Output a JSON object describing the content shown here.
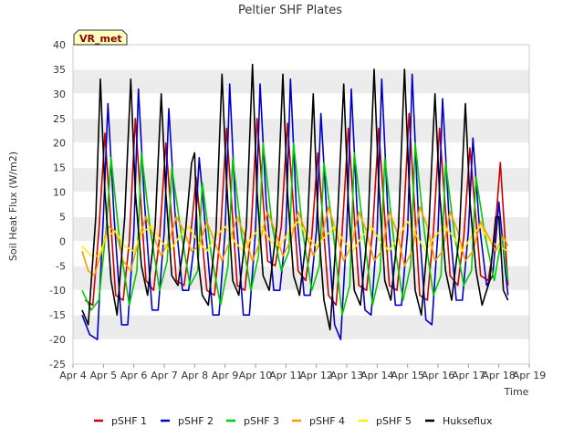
{
  "chart_data": {
    "type": "line",
    "title": "Peltier SHF Plates",
    "xlabel": "Time",
    "ylabel": "Soil Heat Flux (W/m2)",
    "badge": "VR_met",
    "xlim": [
      4,
      19
    ],
    "ylim": [
      -25,
      40
    ],
    "x_ticks": [
      {
        "value": 4,
        "label": "Apr 4"
      },
      {
        "value": 5,
        "label": "Apr 5"
      },
      {
        "value": 6,
        "label": "Apr 6"
      },
      {
        "value": 7,
        "label": "Apr 7"
      },
      {
        "value": 8,
        "label": "Apr 8"
      },
      {
        "value": 9,
        "label": "Apr 9"
      },
      {
        "value": 10,
        "label": "Apr 10"
      },
      {
        "value": 11,
        "label": "Apr 11"
      },
      {
        "value": 12,
        "label": "Apr 12"
      },
      {
        "value": 13,
        "label": "Apr 13"
      },
      {
        "value": 14,
        "label": "Apr 14"
      },
      {
        "value": 15,
        "label": "Apr 15"
      },
      {
        "value": 16,
        "label": "Apr 16"
      },
      {
        "value": 17,
        "label": "Apr 17"
      },
      {
        "value": 18,
        "label": "Apr 18"
      },
      {
        "value": 19,
        "label": "Apr 19"
      }
    ],
    "y_ticks": [
      {
        "value": -25,
        "label": "-25"
      },
      {
        "value": -20,
        "label": "-20"
      },
      {
        "value": -15,
        "label": "-15"
      },
      {
        "value": -10,
        "label": "-10"
      },
      {
        "value": -5,
        "label": "-5"
      },
      {
        "value": 0,
        "label": "0"
      },
      {
        "value": 5,
        "label": "5"
      },
      {
        "value": 10,
        "label": "10"
      },
      {
        "value": 15,
        "label": "15"
      },
      {
        "value": 20,
        "label": "20"
      },
      {
        "value": 25,
        "label": "25"
      },
      {
        "value": 30,
        "label": "30"
      },
      {
        "value": 35,
        "label": "35"
      },
      {
        "value": 40,
        "label": "40"
      }
    ],
    "shaded_bands": [
      [
        -20,
        -15
      ],
      [
        -10,
        -5
      ],
      [
        0,
        5
      ],
      [
        10,
        15
      ],
      [
        20,
        25
      ],
      [
        30,
        35
      ]
    ],
    "series": [
      {
        "name": "pSHF 1",
        "color": "#cc0000",
        "x": [
          4.4,
          4.65,
          4.85,
          5.05,
          5.4,
          5.65,
          5.85,
          6.05,
          6.4,
          6.65,
          6.85,
          7.05,
          7.4,
          7.65,
          7.85,
          8.05,
          8.4,
          8.65,
          8.85,
          9.05,
          9.4,
          9.65,
          9.85,
          10.05,
          10.4,
          10.65,
          10.85,
          11.05,
          11.4,
          11.65,
          11.85,
          12.05,
          12.4,
          12.65,
          12.85,
          13.05,
          13.4,
          13.65,
          13.85,
          14.05,
          14.4,
          14.65,
          14.85,
          15.05,
          15.4,
          15.65,
          15.85,
          16.05,
          16.4,
          16.65,
          16.85,
          17.05,
          17.4,
          17.65,
          17.85,
          18.05,
          18.3
        ],
        "y": [
          -12,
          -13,
          2,
          22,
          -11,
          -12,
          0,
          25,
          -8,
          -10,
          1,
          20,
          -8,
          -9,
          0,
          13,
          -10,
          -11,
          2,
          23,
          -9,
          -10,
          2,
          25,
          -4,
          -5,
          3,
          24,
          -6,
          -8,
          1,
          18,
          -11,
          -13,
          2,
          23,
          -9,
          -10,
          2,
          23,
          -9,
          -10,
          2,
          26,
          -11,
          -12,
          2,
          23,
          -7,
          -9,
          1,
          19,
          -7,
          -8,
          0,
          16,
          -9
        ]
      },
      {
        "name": "pSHF 2",
        "color": "#0000cc",
        "x": [
          4.3,
          4.55,
          4.8,
          5.0,
          5.15,
          5.35,
          5.6,
          5.8,
          6.0,
          6.15,
          6.35,
          6.6,
          6.8,
          7.0,
          7.15,
          7.35,
          7.6,
          7.8,
          8.0,
          8.15,
          8.35,
          8.6,
          8.8,
          9.0,
          9.15,
          9.35,
          9.6,
          9.8,
          10.0,
          10.15,
          10.35,
          10.6,
          10.8,
          11.0,
          11.15,
          11.35,
          11.6,
          11.8,
          12.0,
          12.15,
          12.35,
          12.6,
          12.8,
          13.0,
          13.15,
          13.35,
          13.6,
          13.8,
          14.0,
          14.15,
          14.35,
          14.6,
          14.8,
          15.0,
          15.15,
          15.35,
          15.6,
          15.8,
          16.0,
          16.15,
          16.35,
          16.6,
          16.8,
          17.0,
          17.15,
          17.35,
          17.6,
          17.8,
          18.0,
          18.2,
          18.3
        ],
        "y": [
          -15,
          -19,
          -20,
          5,
          28,
          5,
          -17,
          -17,
          2,
          31,
          8,
          -14,
          -14,
          2,
          27,
          6,
          -10,
          -10,
          0,
          17,
          3,
          -15,
          -15,
          2,
          32,
          6,
          -15,
          -15,
          2,
          32,
          8,
          -10,
          -10,
          2,
          33,
          6,
          -11,
          -11,
          2,
          26,
          5,
          -17,
          -20,
          2,
          31,
          5,
          -14,
          -15,
          2,
          33,
          6,
          -13,
          -13,
          2,
          34,
          6,
          -16,
          -17,
          2,
          29,
          6,
          -12,
          -12,
          2,
          21,
          4,
          -9,
          -7,
          8,
          -5,
          -11
        ]
      },
      {
        "name": "pSHF 3",
        "color": "#00cc00",
        "x": [
          4.3,
          4.6,
          4.85,
          5.1,
          5.25,
          5.55,
          5.85,
          6.1,
          6.25,
          6.55,
          6.85,
          7.1,
          7.25,
          7.55,
          7.85,
          8.1,
          8.25,
          8.55,
          8.85,
          9.1,
          9.25,
          9.55,
          9.85,
          10.1,
          10.25,
          10.55,
          10.85,
          11.1,
          11.25,
          11.55,
          11.85,
          12.1,
          12.25,
          12.55,
          12.85,
          13.1,
          13.25,
          13.55,
          13.85,
          14.1,
          14.25,
          14.55,
          14.85,
          15.1,
          15.25,
          15.55,
          15.85,
          16.1,
          16.25,
          16.55,
          16.85,
          17.1,
          17.25,
          17.55,
          17.85,
          18.1,
          18.3
        ],
        "y": [
          -10,
          -14,
          -12,
          3,
          17,
          -1,
          -13,
          -6,
          18,
          2,
          -10,
          -4,
          15,
          2,
          -9,
          -6,
          12,
          -3,
          -13,
          -5,
          17,
          1,
          -10,
          -3,
          20,
          3,
          -6,
          -2,
          20,
          2,
          -10,
          -5,
          16,
          2,
          -15,
          -9,
          18,
          2,
          -13,
          -6,
          17,
          0,
          -12,
          -5,
          20,
          2,
          -11,
          -7,
          16,
          1,
          -9,
          -6,
          13,
          1,
          -8,
          1,
          -8
        ]
      },
      {
        "name": "pSHF 4",
        "color": "#ff9900",
        "x": [
          4.3,
          4.5,
          4.7,
          4.9,
          5.15,
          5.4,
          5.65,
          5.9,
          6.15,
          6.4,
          6.65,
          6.9,
          7.15,
          7.4,
          7.65,
          7.9,
          8.15,
          8.4,
          8.65,
          8.9,
          9.15,
          9.4,
          9.65,
          9.9,
          10.15,
          10.4,
          10.65,
          10.9,
          11.15,
          11.4,
          11.65,
          11.9,
          12.15,
          12.4,
          12.65,
          12.9,
          13.15,
          13.4,
          13.65,
          13.9,
          14.15,
          14.4,
          14.65,
          14.9,
          15.15,
          15.4,
          15.65,
          15.9,
          16.15,
          16.4,
          16.65,
          16.9,
          17.15,
          17.4,
          17.65,
          17.9,
          18.15,
          18.3
        ],
        "y": [
          -2,
          -6,
          -7,
          -3,
          3,
          2,
          -4,
          -6,
          0,
          5,
          1,
          -3,
          0,
          5,
          2,
          -2,
          -1,
          4,
          0,
          -4,
          0,
          5,
          1,
          -4,
          0,
          6,
          2,
          -3,
          0,
          6,
          2,
          -3,
          0,
          7,
          2,
          -4,
          -1,
          6,
          2,
          -4,
          -2,
          6,
          2,
          -5,
          -2,
          7,
          3,
          -4,
          -2,
          6,
          2,
          -4,
          -2,
          4,
          1,
          -2,
          1,
          -1
        ]
      },
      {
        "name": "pSHF 5",
        "color": "#ffee00",
        "x": [
          4.3,
          4.6,
          4.85,
          5.1,
          5.4,
          5.7,
          6.0,
          6.3,
          6.6,
          6.9,
          7.2,
          7.5,
          7.8,
          8.1,
          8.4,
          8.7,
          9.0,
          9.3,
          9.6,
          9.9,
          10.2,
          10.5,
          10.8,
          11.1,
          11.4,
          11.7,
          12.0,
          12.3,
          12.6,
          12.9,
          13.2,
          13.5,
          13.8,
          14.1,
          14.4,
          14.7,
          15.0,
          15.3,
          15.6,
          15.9,
          16.2,
          16.5,
          16.8,
          17.1,
          17.4,
          17.7,
          18.0,
          18.3
        ],
        "y": [
          -1,
          -3,
          -3,
          1,
          2,
          -1,
          -2,
          2,
          3,
          0,
          -2,
          1,
          3,
          0,
          -2,
          1,
          3,
          0,
          -2,
          1,
          3,
          0,
          -1,
          2,
          4,
          1,
          -1,
          1,
          3,
          0,
          -2,
          1,
          3,
          0,
          -2,
          1,
          4,
          1,
          -2,
          1,
          3,
          1,
          -2,
          1,
          3,
          0,
          -1,
          -2
        ]
      },
      {
        "name": "Hukseflux",
        "color": "#000000",
        "x": [
          4.3,
          4.5,
          4.75,
          4.9,
          5.05,
          5.25,
          5.45,
          5.7,
          5.9,
          6.05,
          6.25,
          6.45,
          6.7,
          6.9,
          7.05,
          7.25,
          7.45,
          7.7,
          7.9,
          8.0,
          8.1,
          8.25,
          8.45,
          8.7,
          8.9,
          9.05,
          9.25,
          9.45,
          9.7,
          9.9,
          10.05,
          10.25,
          10.45,
          10.7,
          10.9,
          11.05,
          11.25,
          11.45,
          11.7,
          11.9,
          12.05,
          12.25,
          12.45,
          12.7,
          12.9,
          13.05,
          13.25,
          13.45,
          13.7,
          13.9,
          14.05,
          14.25,
          14.45,
          14.7,
          14.9,
          15.05,
          15.25,
          15.45,
          15.7,
          15.9,
          16.05,
          16.25,
          16.45,
          16.7,
          16.9,
          17.05,
          17.25,
          17.45,
          17.7,
          17.9,
          18.0,
          18.15,
          18.3
        ],
        "y": [
          -14,
          -17,
          5,
          33,
          10,
          -8,
          -15,
          5,
          33,
          10,
          -5,
          -11,
          3,
          30,
          10,
          -7,
          -9,
          2,
          16,
          18,
          -3,
          -11,
          -13,
          2,
          34,
          12,
          -8,
          -11,
          3,
          36,
          10,
          -7,
          -10,
          3,
          34,
          10,
          -7,
          -11,
          2,
          30,
          5,
          -12,
          -18,
          5,
          32,
          8,
          -10,
          -13,
          3,
          35,
          12,
          -8,
          -12,
          3,
          35,
          12,
          -10,
          -15,
          3,
          30,
          10,
          -6,
          -12,
          1,
          28,
          8,
          -6,
          -13,
          -8,
          5,
          5,
          -10,
          -12
        ]
      }
    ]
  }
}
